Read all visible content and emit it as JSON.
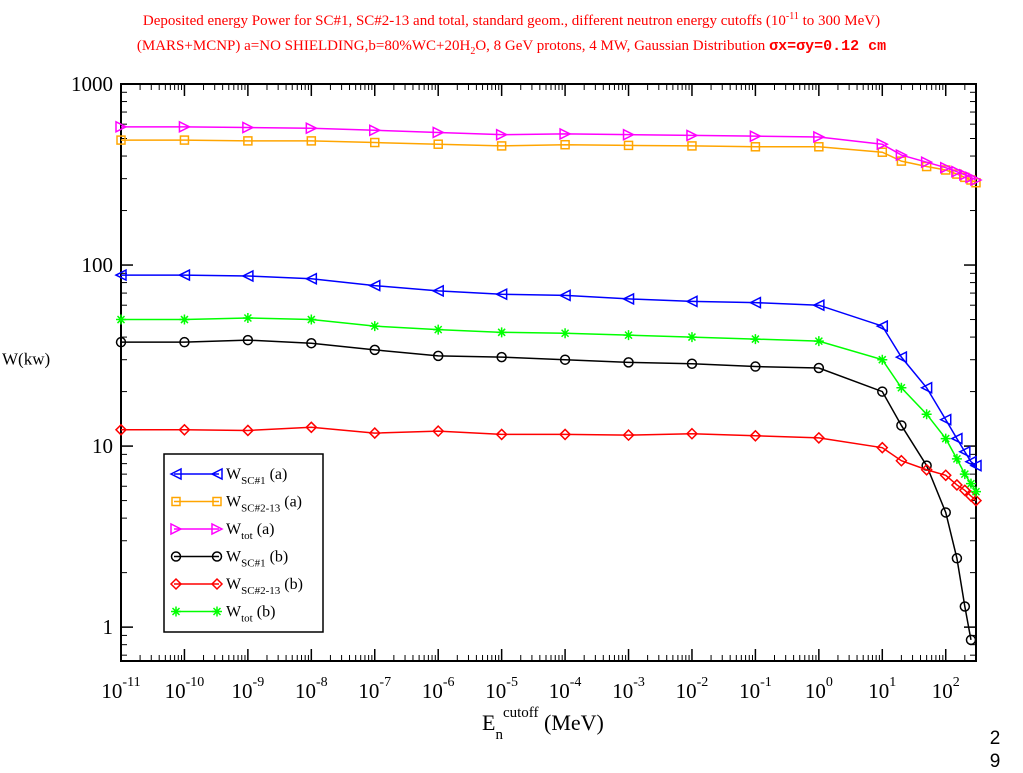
{
  "title": {
    "line1_prefix": "Deposited energy Power for SC#1, SC#2-13 and total, standard geom., different neutron energy cutoffs (10",
    "line1_exp": "-11",
    "line1_suffix": " to 300 MeV)",
    "line2_a": "(MARS+MCNP)  a=NO SHIELDING,b=80%WC+20H",
    "line2_sub": "2",
    "line2_b": "O,  8 GeV protons, 4 MW, Gaussian Distribution ",
    "line2_sigma": "σx=σy=0.12 cm"
  },
  "page_number": "2 9",
  "colors": {
    "title": "#ff0000",
    "wsc1_a": "#0000ff",
    "wsc213_a": "#ffa500",
    "wtot_a": "#ff00ff",
    "wsc1_b": "#000000",
    "wsc213_b": "#ff0000",
    "wtot_b": "#00ff00"
  },
  "chart_data": {
    "type": "line",
    "title": "Deposited energy Power for SC#1, SC#2-13 and total, standard geom., different neutron energy cutoffs (10^-11 to 300 MeV)",
    "xlabel": "E_n^cutoff (MeV)",
    "ylabel": "W(kw)",
    "xscale": "log",
    "yscale": "log",
    "xlim": [
      1e-11,
      300
    ],
    "ylim": [
      0.65,
      1000
    ],
    "x_tick_labels": [
      "10^-11",
      "10^-10",
      "10^-9",
      "10^-8",
      "10^-7",
      "10^-6",
      "10^-5",
      "10^-4",
      "10^-3",
      "10^-2",
      "10^-1",
      "10^0",
      "10^1",
      "10^2"
    ],
    "y_tick_labels": [
      "1",
      "10",
      "100",
      "1000"
    ],
    "grid": false,
    "legend_position": "bottom-left",
    "series": [
      {
        "name": "W_SC#1 (a)",
        "color": "#0000ff",
        "marker": "triangle-left",
        "x": [
          1e-11,
          1e-10,
          1e-09,
          1e-08,
          1e-07,
          1e-06,
          1e-05,
          0.0001,
          0.001,
          0.01,
          0.1,
          1,
          10,
          20,
          50,
          100,
          150,
          200,
          250,
          300
        ],
        "y": [
          88,
          88,
          87,
          84,
          77,
          72,
          69,
          68,
          65,
          63,
          62,
          60,
          46,
          31,
          21,
          14,
          11,
          9.3,
          8.2,
          7.8
        ]
      },
      {
        "name": "W_SC#2-13 (a)",
        "color": "#ffa500",
        "marker": "square",
        "x": [
          1e-11,
          1e-10,
          1e-09,
          1e-08,
          1e-07,
          1e-06,
          1e-05,
          0.0001,
          0.001,
          0.01,
          0.1,
          1,
          10,
          20,
          50,
          100,
          150,
          200,
          250,
          300
        ],
        "y": [
          490,
          490,
          485,
          485,
          475,
          465,
          455,
          462,
          458,
          455,
          450,
          450,
          420,
          375,
          350,
          335,
          318,
          305,
          295,
          285
        ]
      },
      {
        "name": "W_tot (a)",
        "color": "#ff00ff",
        "marker": "triangle-right",
        "x": [
          1e-11,
          1e-10,
          1e-09,
          1e-08,
          1e-07,
          1e-06,
          1e-05,
          0.0001,
          0.001,
          0.01,
          0.1,
          1,
          10,
          20,
          50,
          100,
          150,
          200,
          250,
          300
        ],
        "y": [
          580,
          580,
          575,
          570,
          555,
          540,
          525,
          530,
          525,
          520,
          515,
          510,
          465,
          405,
          370,
          345,
          328,
          315,
          305,
          295
        ]
      },
      {
        "name": "W_SC#1 (b)",
        "color": "#000000",
        "marker": "circle",
        "x": [
          1e-11,
          1e-10,
          1e-09,
          1e-08,
          1e-07,
          1e-06,
          1e-05,
          0.0001,
          0.001,
          0.01,
          0.1,
          1,
          10,
          20,
          50,
          100,
          150,
          200,
          250
        ],
        "y": [
          37.5,
          37.5,
          38.5,
          37,
          34,
          31.5,
          31,
          30,
          29,
          28.5,
          27.5,
          27,
          20,
          13,
          7.8,
          4.3,
          2.4,
          1.3,
          0.85
        ]
      },
      {
        "name": "W_SC#2-13 (b)",
        "color": "#ff0000",
        "marker": "diamond",
        "x": [
          1e-11,
          1e-10,
          1e-09,
          1e-08,
          1e-07,
          1e-06,
          1e-05,
          0.0001,
          0.001,
          0.01,
          0.1,
          1,
          10,
          20,
          50,
          100,
          150,
          200,
          250,
          300
        ],
        "y": [
          12.3,
          12.3,
          12.2,
          12.7,
          11.8,
          12.1,
          11.6,
          11.6,
          11.5,
          11.7,
          11.4,
          11.1,
          9.8,
          8.3,
          7.4,
          6.9,
          6.1,
          5.7,
          5.3,
          5
        ]
      },
      {
        "name": "W_tot (b)",
        "color": "#00ff00",
        "marker": "star",
        "x": [
          1e-11,
          1e-10,
          1e-09,
          1e-08,
          1e-07,
          1e-06,
          1e-05,
          0.0001,
          0.001,
          0.01,
          0.1,
          1,
          10,
          20,
          50,
          100,
          150,
          200,
          250,
          300
        ],
        "y": [
          50,
          50,
          51,
          50,
          46,
          44,
          42.5,
          42,
          41,
          40,
          39,
          38,
          30,
          21,
          15,
          11,
          8.5,
          7,
          6.2,
          5.6
        ]
      }
    ],
    "legend": [
      {
        "base": "W",
        "sub": "SC#1",
        "suffix": " (a)"
      },
      {
        "base": "W",
        "sub": "SC#2-13",
        "suffix": " (a)"
      },
      {
        "base": "W",
        "sub": "tot",
        "suffix": " (a)"
      },
      {
        "base": "W",
        "sub": "SC#1",
        "suffix": " (b)"
      },
      {
        "base": "W",
        "sub": "SC#2-13",
        "suffix": " (b)"
      },
      {
        "base": "W",
        "sub": "tot",
        "suffix": " (b)"
      }
    ],
    "axis_text": {
      "ylabel": "W(kw)",
      "xlabel_base": "E",
      "xlabel_sub": "n",
      "xlabel_sup": "cutoff",
      "xlabel_unit": " (MeV)"
    }
  }
}
